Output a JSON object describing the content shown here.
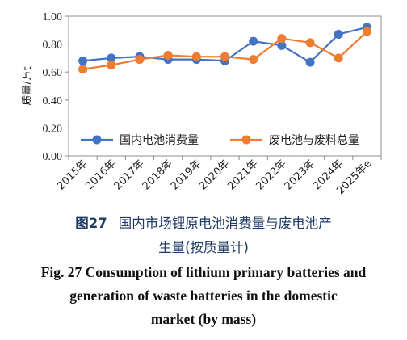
{
  "chart_data": {
    "type": "line",
    "ylabel": "质量/万t",
    "ylim": [
      0.0,
      1.0
    ],
    "yticks": [
      "0.00",
      "0.20",
      "0.40",
      "0.60",
      "0.80",
      "1.00"
    ],
    "categories": [
      "2015年",
      "2016年",
      "2017年",
      "2018年",
      "2019年",
      "2020年",
      "2021年",
      "2022年",
      "2023年",
      "2024年",
      "2025年e"
    ],
    "series": [
      {
        "name": "国内电池消费量",
        "color": "#4472c4",
        "values": [
          0.68,
          0.7,
          0.71,
          0.69,
          0.69,
          0.68,
          0.82,
          0.79,
          0.67,
          0.87,
          0.92
        ]
      },
      {
        "name": "废电池与废料总量",
        "color": "#ed7d31",
        "values": [
          0.62,
          0.65,
          0.69,
          0.72,
          0.71,
          0.71,
          0.69,
          0.84,
          0.81,
          0.7,
          0.89
        ]
      }
    ],
    "grid": false,
    "legend_position": "inside-bottom"
  },
  "caption": {
    "zh_fig": "图27",
    "zh_line1": "国内市场锂原电池消费量与废电池产",
    "zh_line2": "生量(按质量计)",
    "en_line1": "Fig. 27    Consumption of lithium primary batteries and",
    "en_line2": "generation of waste batteries in the domestic",
    "en_line3": "market (by mass)"
  }
}
